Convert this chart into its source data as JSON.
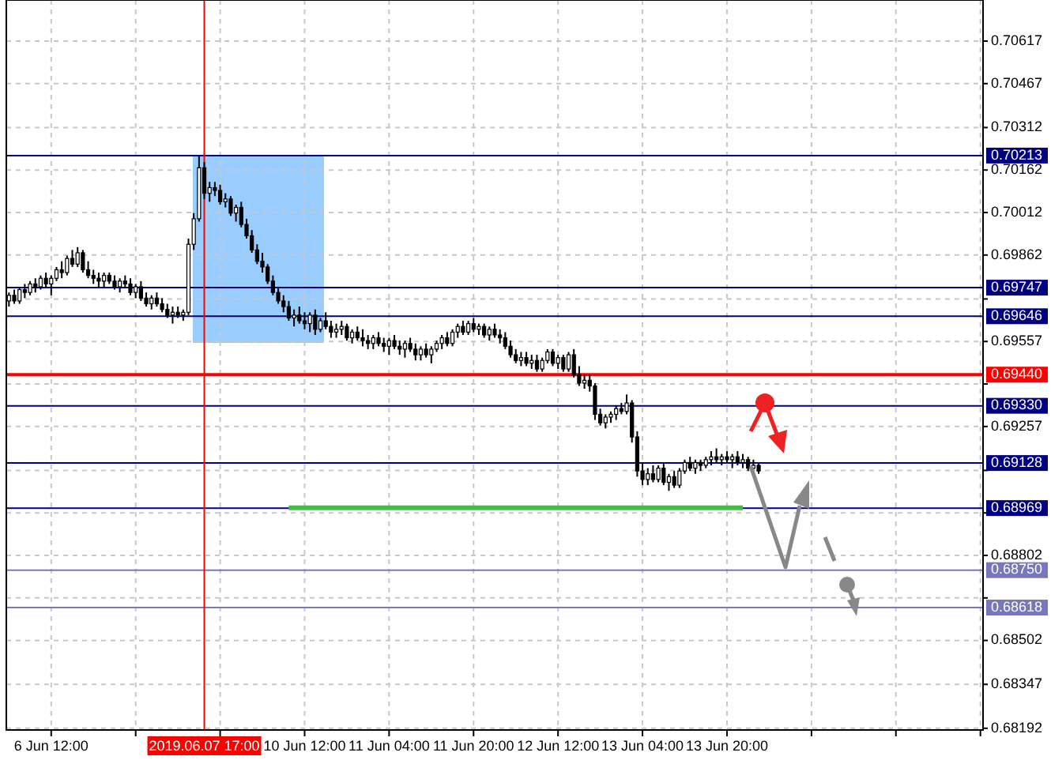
{
  "chart_data": {
    "type": "candlestick",
    "ohlc": [
      [
        0.697,
        0.6973,
        0.6968,
        0.6972
      ],
      [
        0.6972,
        0.6974,
        0.6969,
        0.697
      ],
      [
        0.697,
        0.6975,
        0.6969,
        0.6974
      ],
      [
        0.6974,
        0.6976,
        0.6971,
        0.6973
      ],
      [
        0.6973,
        0.6977,
        0.6972,
        0.6976
      ],
      [
        0.6976,
        0.6978,
        0.6973,
        0.6975
      ],
      [
        0.6975,
        0.6979,
        0.6974,
        0.6978
      ],
      [
        0.6978,
        0.698,
        0.6975,
        0.6976
      ],
      [
        0.6976,
        0.6979,
        0.6972,
        0.6978
      ],
      [
        0.6978,
        0.6982,
        0.6977,
        0.6981
      ],
      [
        0.6981,
        0.6984,
        0.6978,
        0.698
      ],
      [
        0.698,
        0.6986,
        0.6979,
        0.6985
      ],
      [
        0.6985,
        0.6988,
        0.6982,
        0.6983
      ],
      [
        0.6983,
        0.6989,
        0.6982,
        0.6987
      ],
      [
        0.6987,
        0.6988,
        0.698,
        0.6981
      ],
      [
        0.6981,
        0.6984,
        0.6978,
        0.6979
      ],
      [
        0.6979,
        0.6981,
        0.6976,
        0.6978
      ],
      [
        0.6978,
        0.698,
        0.6975,
        0.6977
      ],
      [
        0.6977,
        0.698,
        0.6975,
        0.6979
      ],
      [
        0.6979,
        0.698,
        0.6976,
        0.6977
      ],
      [
        0.6977,
        0.6979,
        0.6974,
        0.6975
      ],
      [
        0.6975,
        0.6978,
        0.6973,
        0.6977
      ],
      [
        0.6977,
        0.6979,
        0.6975,
        0.6976
      ],
      [
        0.6976,
        0.6978,
        0.6972,
        0.6973
      ],
      [
        0.6973,
        0.6976,
        0.6971,
        0.6975
      ],
      [
        0.6975,
        0.6977,
        0.697,
        0.6971
      ],
      [
        0.6971,
        0.6973,
        0.6968,
        0.6969
      ],
      [
        0.6969,
        0.6972,
        0.6967,
        0.6971
      ],
      [
        0.6971,
        0.6973,
        0.6968,
        0.6969
      ],
      [
        0.6969,
        0.6971,
        0.6966,
        0.6967
      ],
      [
        0.6967,
        0.6969,
        0.6964,
        0.6965
      ],
      [
        0.6965,
        0.6968,
        0.6962,
        0.6966
      ],
      [
        0.6966,
        0.6968,
        0.6964,
        0.6965
      ],
      [
        0.6965,
        0.6967,
        0.6963,
        0.6966
      ],
      [
        0.6966,
        0.6992,
        0.6965,
        0.699
      ],
      [
        0.699,
        0.7001,
        0.6988,
        0.6999
      ],
      [
        0.6999,
        0.7021,
        0.6998,
        0.7017
      ],
      [
        0.7017,
        0.7019,
        0.7006,
        0.7008
      ],
      [
        0.7008,
        0.7012,
        0.7005,
        0.701
      ],
      [
        0.701,
        0.7012,
        0.7007,
        0.7009
      ],
      [
        0.7009,
        0.7011,
        0.7004,
        0.7005
      ],
      [
        0.7005,
        0.7008,
        0.7003,
        0.7006
      ],
      [
        0.7006,
        0.7007,
        0.7,
        0.7001
      ],
      [
        0.7001,
        0.7004,
        0.6998,
        0.7003
      ],
      [
        0.7003,
        0.7005,
        0.6996,
        0.6997
      ],
      [
        0.6997,
        0.6999,
        0.6992,
        0.6993
      ],
      [
        0.6993,
        0.6995,
        0.6987,
        0.6988
      ],
      [
        0.6988,
        0.699,
        0.6983,
        0.6984
      ],
      [
        0.6984,
        0.6987,
        0.698,
        0.6982
      ],
      [
        0.6982,
        0.6983,
        0.6976,
        0.6977
      ],
      [
        0.6977,
        0.6979,
        0.6972,
        0.6973
      ],
      [
        0.6973,
        0.6975,
        0.6969,
        0.697
      ],
      [
        0.697,
        0.6972,
        0.6966,
        0.6968
      ],
      [
        0.6968,
        0.697,
        0.6963,
        0.6964
      ],
      [
        0.6964,
        0.6967,
        0.6961,
        0.6965
      ],
      [
        0.6965,
        0.6968,
        0.6962,
        0.6963
      ],
      [
        0.6963,
        0.6966,
        0.696,
        0.6962
      ],
      [
        0.6962,
        0.6966,
        0.6959,
        0.6965
      ],
      [
        0.6965,
        0.6967,
        0.6958,
        0.696
      ],
      [
        0.696,
        0.6964,
        0.6959,
        0.6963
      ],
      [
        0.6963,
        0.6966,
        0.696,
        0.6961
      ],
      [
        0.6961,
        0.6963,
        0.6957,
        0.6959
      ],
      [
        0.6959,
        0.6962,
        0.6957,
        0.696
      ],
      [
        0.696,
        0.6963,
        0.6958,
        0.6961
      ],
      [
        0.6961,
        0.6962,
        0.6956,
        0.6957
      ],
      [
        0.6957,
        0.696,
        0.6955,
        0.6959
      ],
      [
        0.6959,
        0.6961,
        0.6956,
        0.6957
      ],
      [
        0.6957,
        0.696,
        0.6954,
        0.6956
      ],
      [
        0.6956,
        0.6958,
        0.6953,
        0.6955
      ],
      [
        0.6955,
        0.6958,
        0.6953,
        0.6957
      ],
      [
        0.6957,
        0.6959,
        0.6954,
        0.6955
      ],
      [
        0.6955,
        0.6957,
        0.6952,
        0.6954
      ],
      [
        0.6954,
        0.6957,
        0.6951,
        0.6956
      ],
      [
        0.6956,
        0.6958,
        0.6953,
        0.6954
      ],
      [
        0.6954,
        0.6956,
        0.6951,
        0.6953
      ],
      [
        0.6953,
        0.6956,
        0.695,
        0.6955
      ],
      [
        0.6955,
        0.6957,
        0.6952,
        0.6953
      ],
      [
        0.6953,
        0.6955,
        0.6949,
        0.6951
      ],
      [
        0.6951,
        0.6954,
        0.6949,
        0.6953
      ],
      [
        0.6953,
        0.6955,
        0.695,
        0.6951
      ],
      [
        0.6951,
        0.6954,
        0.6948,
        0.6953
      ],
      [
        0.6953,
        0.6956,
        0.6952,
        0.6955
      ],
      [
        0.6955,
        0.6958,
        0.6953,
        0.6957
      ],
      [
        0.6957,
        0.6959,
        0.6954,
        0.6955
      ],
      [
        0.6955,
        0.696,
        0.6954,
        0.6959
      ],
      [
        0.6959,
        0.6962,
        0.6957,
        0.6961
      ],
      [
        0.6961,
        0.6963,
        0.6958,
        0.6959
      ],
      [
        0.6959,
        0.6963,
        0.6958,
        0.6962
      ],
      [
        0.6962,
        0.6964,
        0.6959,
        0.696
      ],
      [
        0.696,
        0.6962,
        0.6958,
        0.6961
      ],
      [
        0.6961,
        0.6962,
        0.6957,
        0.6958
      ],
      [
        0.6958,
        0.6961,
        0.6956,
        0.696
      ],
      [
        0.696,
        0.6962,
        0.6957,
        0.6958
      ],
      [
        0.6958,
        0.696,
        0.6955,
        0.6957
      ],
      [
        0.6957,
        0.6959,
        0.6953,
        0.6954
      ],
      [
        0.6954,
        0.6956,
        0.695,
        0.6951
      ],
      [
        0.6951,
        0.6953,
        0.6948,
        0.6949
      ],
      [
        0.6949,
        0.6952,
        0.6947,
        0.695
      ],
      [
        0.695,
        0.6952,
        0.6947,
        0.6948
      ],
      [
        0.6948,
        0.6951,
        0.6946,
        0.6949
      ],
      [
        0.6949,
        0.6951,
        0.6945,
        0.6946
      ],
      [
        0.6946,
        0.695,
        0.6945,
        0.6949
      ],
      [
        0.6949,
        0.6953,
        0.6948,
        0.6952
      ],
      [
        0.6952,
        0.6953,
        0.6947,
        0.6948
      ],
      [
        0.6948,
        0.6951,
        0.6946,
        0.695
      ],
      [
        0.695,
        0.6951,
        0.6945,
        0.6946
      ],
      [
        0.6946,
        0.6952,
        0.6945,
        0.6951
      ],
      [
        0.6951,
        0.6953,
        0.6943,
        0.6944
      ],
      [
        0.6944,
        0.6947,
        0.694,
        0.6941
      ],
      [
        0.6941,
        0.6944,
        0.6939,
        0.6942
      ],
      [
        0.6942,
        0.6944,
        0.6938,
        0.694
      ],
      [
        0.694,
        0.6941,
        0.6928,
        0.693
      ],
      [
        0.693,
        0.6932,
        0.6926,
        0.6927
      ],
      [
        0.6927,
        0.693,
        0.6925,
        0.6929
      ],
      [
        0.6929,
        0.6931,
        0.6927,
        0.693
      ],
      [
        0.693,
        0.6933,
        0.6928,
        0.6932
      ],
      [
        0.6932,
        0.6934,
        0.693,
        0.6931
      ],
      [
        0.6931,
        0.6937,
        0.693,
        0.6934
      ],
      [
        0.6934,
        0.6935,
        0.692,
        0.6922
      ],
      [
        0.6922,
        0.6924,
        0.6908,
        0.691
      ],
      [
        0.691,
        0.6913,
        0.6905,
        0.6907
      ],
      [
        0.6907,
        0.6911,
        0.6905,
        0.6909
      ],
      [
        0.6909,
        0.6912,
        0.6906,
        0.6907
      ],
      [
        0.6907,
        0.6912,
        0.6906,
        0.6911
      ],
      [
        0.6911,
        0.6913,
        0.6905,
        0.6906
      ],
      [
        0.6906,
        0.6909,
        0.6903,
        0.6908
      ],
      [
        0.6908,
        0.691,
        0.6904,
        0.6905
      ],
      [
        0.6905,
        0.6911,
        0.6904,
        0.691
      ],
      [
        0.691,
        0.6914,
        0.6909,
        0.6913
      ],
      [
        0.6913,
        0.6915,
        0.691,
        0.6911
      ],
      [
        0.6911,
        0.6914,
        0.6909,
        0.6913
      ],
      [
        0.6913,
        0.6914,
        0.691,
        0.6912
      ],
      [
        0.6912,
        0.6915,
        0.6911,
        0.6914
      ],
      [
        0.6914,
        0.6917,
        0.6912,
        0.6915
      ],
      [
        0.6915,
        0.6918,
        0.6913,
        0.6914
      ],
      [
        0.6914,
        0.6916,
        0.6912,
        0.6915
      ],
      [
        0.6915,
        0.6917,
        0.6913,
        0.6914
      ],
      [
        0.6914,
        0.6916,
        0.6911,
        0.6915
      ],
      [
        0.6915,
        0.6917,
        0.6912,
        0.6913
      ],
      [
        0.6913,
        0.6916,
        0.6911,
        0.6914
      ],
      [
        0.6914,
        0.6915,
        0.691,
        0.6911
      ],
      [
        0.6911,
        0.6914,
        0.6909,
        0.6912
      ],
      [
        0.6912,
        0.6913,
        0.6909,
        0.691
      ],
      null,
      null,
      null,
      null,
      null,
      null,
      null,
      null,
      null,
      null,
      null,
      null,
      null,
      null,
      null,
      null,
      null,
      null,
      null,
      null,
      null,
      null,
      null,
      null,
      null,
      null,
      null,
      null,
      null,
      null,
      null,
      null,
      null,
      null,
      null,
      null,
      null,
      null,
      null,
      null,
      null,
      null
    ],
    "categories": [
      null,
      null,
      null,
      null,
      null,
      null,
      null,
      null,
      "6 Jun 12:00",
      null,
      null,
      null,
      null,
      null,
      null,
      null,
      null,
      null,
      null,
      null,
      null,
      null,
      null,
      null,
      null,
      null,
      null,
      null,
      null,
      null,
      null,
      null,
      null,
      null,
      null,
      null,
      null,
      "2019.06.07 17:00",
      null,
      null,
      null,
      null,
      null,
      null,
      null,
      null,
      null,
      null,
      null,
      null,
      null,
      null,
      null,
      null,
      null,
      null,
      "10 Jun 12:00",
      null,
      null,
      null,
      null,
      null,
      null,
      null,
      null,
      null,
      null,
      null,
      null,
      null,
      null,
      null,
      "11 Jun 04:00",
      null,
      null,
      null,
      null,
      null,
      null,
      null,
      null,
      null,
      null,
      null,
      null,
      null,
      null,
      null,
      "11 Jun 20:00",
      null,
      null,
      null,
      null,
      null,
      null,
      null,
      null,
      null,
      null,
      null,
      null,
      null,
      null,
      null,
      "12 Jun 12:00",
      null,
      null,
      null,
      null,
      null,
      null,
      null,
      null,
      null,
      null,
      null,
      null,
      null,
      null,
      null,
      "13 Jun 04:00",
      null,
      null,
      null,
      null,
      null,
      null,
      null,
      null,
      null,
      null,
      null,
      null,
      null,
      null,
      null,
      "13 Jun 20:00",
      null,
      null,
      null,
      null,
      null,
      null,
      null,
      null,
      null,
      null,
      null,
      null,
      null,
      null,
      null,
      null,
      null,
      null,
      null,
      null,
      null,
      null,
      null,
      null,
      null,
      null,
      null,
      null,
      null,
      null,
      null,
      null,
      null,
      null,
      null,
      null,
      null,
      null,
      null,
      null,
      null,
      null,
      null,
      null,
      null,
      null,
      null,
      null
    ],
    "series": [
      {
        "type": "line",
        "color": "#44bb44",
        "values": [
          null,
          null,
          null,
          null,
          null,
          null,
          null,
          null,
          null,
          null,
          null,
          null,
          null,
          null,
          null,
          null,
          null,
          null,
          null,
          null,
          null,
          null,
          null,
          null,
          null,
          null,
          null,
          null,
          null,
          null,
          null,
          null,
          null,
          null,
          null,
          null,
          null,
          null,
          null,
          null,
          null,
          null,
          null,
          null,
          null,
          null,
          null,
          null,
          null,
          null,
          null,
          null,
          null,
          0.6897,
          0.6897,
          0.6897,
          0.6897,
          0.6897,
          0.6897,
          0.6897,
          0.6897,
          0.6897,
          0.6897,
          0.6897,
          0.6897,
          0.6897,
          0.6897,
          0.6897,
          0.6897,
          0.6897,
          0.6897,
          0.6897,
          0.6897,
          0.6897,
          0.6897,
          0.6897,
          0.6897,
          0.6897,
          0.6897,
          0.6897,
          0.6897,
          0.6897,
          0.6897,
          0.6897,
          0.6897,
          0.6897,
          0.6897,
          0.6897,
          0.6897,
          0.6897,
          0.6897,
          0.6897,
          0.6897,
          0.6897,
          0.6897,
          0.6897,
          0.6897,
          0.6897,
          0.6897,
          0.6897,
          0.6897,
          0.6897,
          0.6897,
          0.6897,
          0.6897,
          0.6897,
          0.6897,
          0.6897,
          0.6897,
          0.6897,
          0.6897,
          0.6897,
          0.6897,
          0.6897,
          0.6897,
          0.6897,
          0.6897,
          0.6897,
          0.6897,
          0.6897,
          0.6897,
          0.6897,
          0.6897,
          0.6897,
          0.6897,
          0.6897,
          0.6897,
          0.6897,
          0.6897,
          0.6897,
          0.6897,
          0.6897,
          0.6897,
          0.6897,
          0.6897,
          0.6897,
          0.6897,
          0.6897,
          0.6897,
          0.6897,
          null,
          null,
          null,
          null,
          null,
          null,
          null,
          null,
          null,
          null,
          null,
          null,
          null,
          null,
          null,
          null,
          null,
          null,
          null,
          null,
          null,
          null,
          null,
          null,
          null,
          null,
          null,
          null,
          null,
          null,
          null,
          null,
          null,
          null,
          null,
          null,
          null,
          null,
          null,
          null,
          null,
          null,
          null,
          null,
          null
        ]
      }
    ],
    "ylim": [
      0.68186,
      0.70762
    ],
    "yticks": [
      0.70617,
      0.70467,
      0.70312,
      0.70162,
      0.70012,
      0.69862,
      {
        "value": 0.69707,
        "label": null
      },
      0.69557,
      {
        "value": 0.69407,
        "label": null
      },
      0.69257,
      {
        "value": 0.69102,
        "label": null
      },
      {
        "value": 0.68952,
        "label": null
      },
      0.68802,
      {
        "value": 0.68652,
        "label": null
      },
      0.68502,
      0.68347,
      0.68192
    ],
    "grid": true,
    "ref_lines": [
      {
        "axis": "y",
        "value": 0.70213,
        "label": "0.70213",
        "color": "#000080"
      },
      {
        "axis": "y",
        "value": 0.69747,
        "label": "0.69747",
        "color": "#000080"
      },
      {
        "axis": "y",
        "value": 0.69646,
        "label": "0.69646",
        "color": "#000080"
      },
      {
        "axis": "y",
        "value": 0.6944,
        "label": "0.69440",
        "color": "#ff0000"
      },
      {
        "axis": "y",
        "value": 0.6933,
        "label": "0.69330",
        "color": "#000080"
      },
      {
        "axis": "y",
        "value": 0.69128,
        "label": "0.69128",
        "color": "#000080"
      },
      {
        "axis": "y",
        "value": 0.68969,
        "label": "0.68969",
        "color": "#000080"
      },
      {
        "axis": "y",
        "value": 0.6875,
        "label": "0.68750",
        "color": "#7777bb"
      },
      {
        "axis": "y",
        "value": 0.68618,
        "label": "0.68618",
        "color": "#7777bb"
      },
      {
        "axis": "x",
        "value": "2019.06.07 17:00",
        "color": "#ff0000"
      }
    ]
  }
}
